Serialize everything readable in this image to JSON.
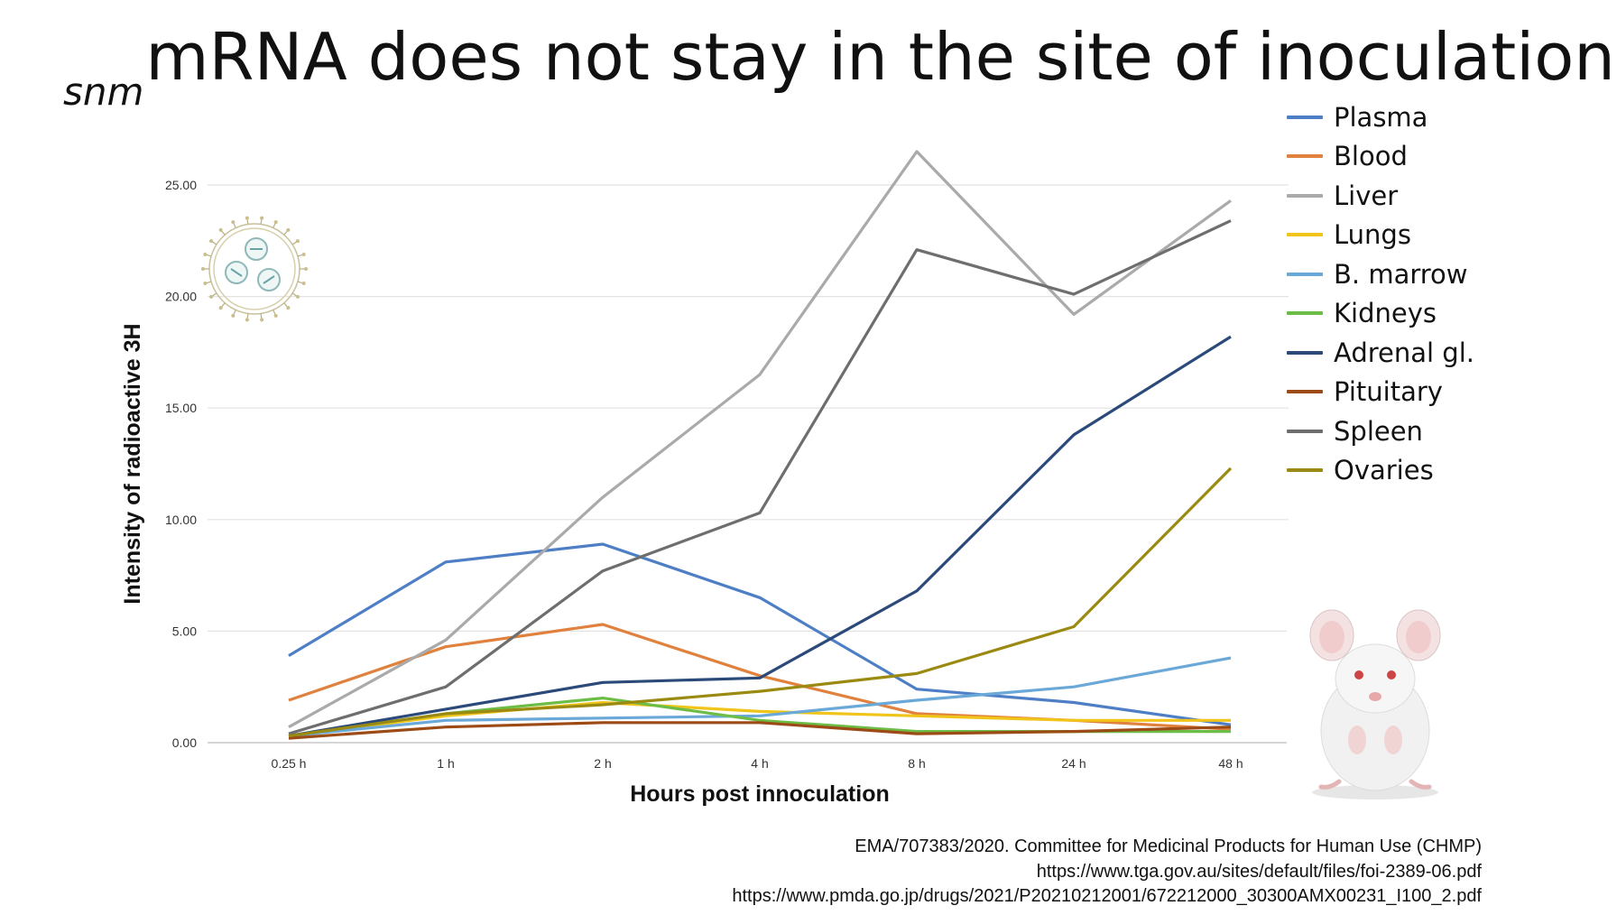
{
  "title": {
    "prefix": "snm",
    "main": "mRNA does not stay in the site of inoculation"
  },
  "chart_data": {
    "type": "line",
    "title": "",
    "xlabel": "Hours post innoculation",
    "ylabel": "Intensity of radioactive 3H",
    "categories": [
      "0.25 h",
      "1 h",
      "2 h",
      "4 h",
      "8 h",
      "24 h",
      "48 h"
    ],
    "ylim": [
      0,
      25
    ],
    "yticks": [
      "0.00",
      "5.00",
      "10.00",
      "15.00",
      "20.00",
      "25.00"
    ],
    "grid": true,
    "legend_position": "right",
    "series": [
      {
        "name": "Plasma",
        "color": "#4e7fc6",
        "values": [
          3.9,
          8.1,
          8.9,
          6.5,
          2.4,
          1.8,
          0.8
        ]
      },
      {
        "name": "Blood",
        "color": "#e0813d",
        "values": [
          1.9,
          4.3,
          5.3,
          3.0,
          1.3,
          1.0,
          0.6
        ]
      },
      {
        "name": "Liver",
        "color": "#aaaaaa",
        "values": [
          0.7,
          4.6,
          11.0,
          16.5,
          26.5,
          19.2,
          24.3
        ]
      },
      {
        "name": "Lungs",
        "color": "#f0c419",
        "values": [
          0.3,
          1.2,
          1.8,
          1.4,
          1.2,
          1.0,
          1.0
        ]
      },
      {
        "name": "B. marrow",
        "color": "#6aa8d8",
        "values": [
          0.3,
          1.0,
          1.1,
          1.2,
          1.9,
          2.5,
          3.8
        ]
      },
      {
        "name": "Kidneys",
        "color": "#6cbd45",
        "values": [
          0.3,
          1.3,
          2.0,
          1.0,
          0.5,
          0.5,
          0.5
        ]
      },
      {
        "name": "Adrenal gl.",
        "color": "#2b4a7a",
        "values": [
          0.3,
          1.5,
          2.7,
          2.9,
          6.8,
          13.8,
          18.2
        ]
      },
      {
        "name": "Pituitary",
        "color": "#9c4a16",
        "values": [
          0.2,
          0.7,
          0.9,
          0.9,
          0.4,
          0.5,
          0.7
        ]
      },
      {
        "name": "Spleen",
        "color": "#6e6e6e",
        "values": [
          0.4,
          2.5,
          7.7,
          10.3,
          22.1,
          20.1,
          23.4
        ]
      },
      {
        "name": "Ovaries",
        "color": "#9a8a12",
        "values": [
          0.3,
          1.3,
          1.7,
          2.3,
          3.1,
          5.2,
          12.3
        ]
      }
    ]
  },
  "references": [
    "EMA/707383/2020. Committee for Medicinal Products for Human Use (CHMP)",
    "https://www.tga.gov.au/sites/default/files/foi-2389-06.pdf",
    "https://www.pmda.go.jp/drugs/2021/P20210212001/672212000_30300AMX00231_I100_2.pdf"
  ],
  "images": {
    "nanoparticle": "lipid-nanoparticle-icon",
    "mouse": "mouse-photo"
  }
}
